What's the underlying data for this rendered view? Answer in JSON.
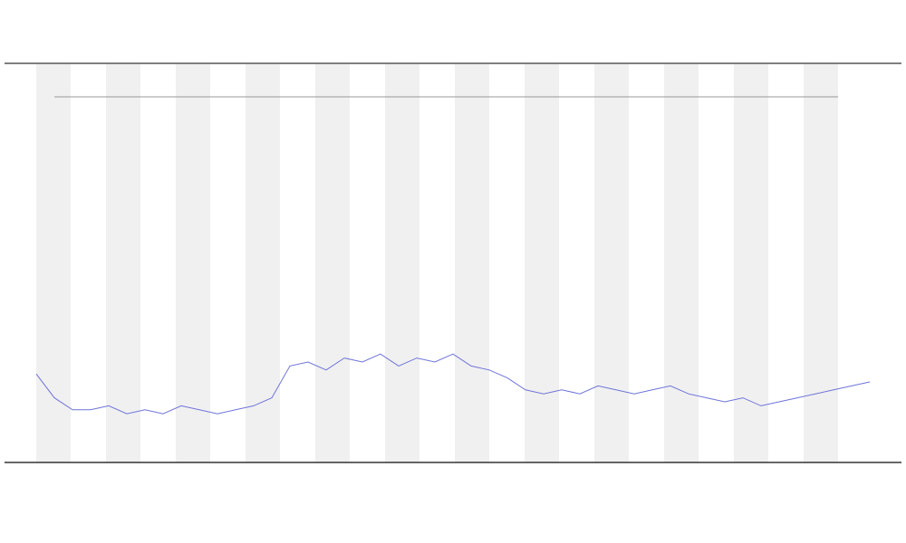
{
  "chart_data": {
    "type": "line",
    "x": [
      0,
      1,
      2,
      3,
      4,
      5,
      6,
      7,
      8,
      9,
      10,
      11,
      12,
      13,
      14,
      15,
      16,
      17,
      18,
      19,
      20,
      21,
      22,
      23,
      24,
      25,
      26,
      27,
      28,
      29,
      30,
      31,
      32,
      33,
      34,
      35,
      36,
      37,
      38,
      39,
      40,
      41,
      42,
      43,
      44,
      45,
      46
    ],
    "xlim": [
      0,
      46
    ],
    "ylim": [
      0,
      100
    ],
    "series": [
      {
        "color": "#6f74d8",
        "values": [
          22,
          16,
          13,
          13,
          14,
          12,
          13,
          12,
          14,
          13,
          12,
          13,
          14,
          16,
          24,
          25,
          23,
          26,
          25,
          27,
          24,
          26,
          25,
          27,
          24,
          23,
          21,
          18,
          17,
          18,
          17,
          19,
          18,
          17,
          18,
          19,
          17,
          16,
          15,
          16,
          14,
          15,
          16,
          17,
          18,
          19,
          20
        ]
      }
    ]
  }
}
